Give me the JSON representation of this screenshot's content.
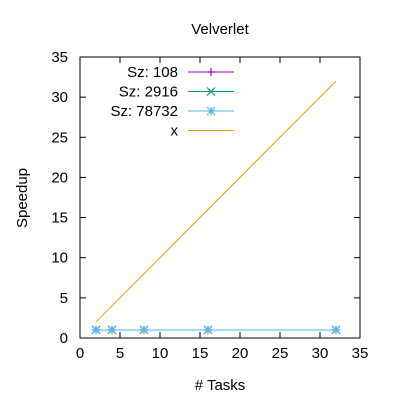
{
  "chart_data": {
    "type": "line",
    "title": "Velverlet",
    "xlabel": "# Tasks",
    "ylabel": "Speedup",
    "xlim": [
      0,
      35
    ],
    "ylim": [
      0,
      35
    ],
    "xticks": [
      0,
      5,
      10,
      15,
      20,
      25,
      30,
      35
    ],
    "yticks": [
      0,
      5,
      10,
      15,
      20,
      25,
      30,
      35
    ],
    "grid": false,
    "legend_position": "top-left",
    "series": [
      {
        "name": "Sz: 108",
        "color": "#9400d3",
        "marker": "plus",
        "x": [
          2,
          4,
          8,
          16,
          32
        ],
        "y": [
          1,
          1,
          1,
          1,
          1
        ]
      },
      {
        "name": "Sz: 2916",
        "color": "#009e73",
        "marker": "cross",
        "x": [
          2,
          4,
          8,
          16,
          32
        ],
        "y": [
          1,
          1,
          1,
          1,
          1
        ]
      },
      {
        "name": "Sz: 78732",
        "color": "#56b4e9",
        "marker": "star",
        "x": [
          2,
          4,
          8,
          16,
          32
        ],
        "y": [
          1,
          1,
          1,
          1,
          1
        ]
      },
      {
        "name": "x",
        "color": "#e69f00",
        "marker": "none",
        "x": [
          2,
          32
        ],
        "y": [
          2,
          32
        ]
      }
    ]
  }
}
